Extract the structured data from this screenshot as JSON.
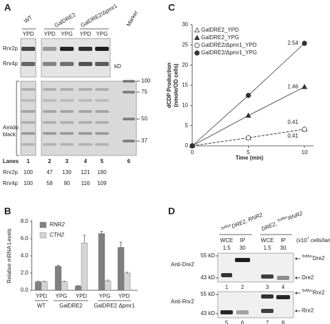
{
  "panel_a": {
    "letter": "A",
    "strains": [
      "WT",
      "GalDRE2",
      "GalDRE2/Δpmr1"
    ],
    "marker": "Marker",
    "media": [
      "YPD",
      "YPD",
      "YPG",
      "YPD",
      "YPG"
    ],
    "bands": [
      "Rnr2p",
      "Rnr4p"
    ],
    "kd": "kD",
    "stain": [
      "Amido",
      "black"
    ],
    "marker_sizes": [
      "100",
      "75",
      "50",
      "37"
    ],
    "lanes_label": "Lanes",
    "lanes": [
      "1",
      "2",
      "3",
      "4",
      "5",
      "6"
    ],
    "quant": [
      {
        "label": "Rnr2p",
        "values": [
          "100",
          "47",
          "130",
          "121",
          "180"
        ]
      },
      {
        "label": "Rnr4p",
        "values": [
          "100",
          "58",
          "90",
          "116",
          "109"
        ]
      }
    ]
  },
  "chart_data": [
    {
      "type": "bar",
      "panel": "B",
      "y_label": "Relative mRNA Levels",
      "categories": [
        "YPD",
        "YPG",
        "YPD",
        "YPG",
        "YPD"
      ],
      "group_labels": [
        "WT",
        "GalDRE2",
        "GalDRE2 Δpmr1"
      ],
      "series": [
        {
          "name": "RNR2",
          "color": "#808080",
          "values": [
            1.0,
            2.8,
            0.5,
            6.6,
            5.0
          ],
          "errors": [
            0.05,
            0.1,
            0.05,
            0.25,
            0.6
          ]
        },
        {
          "name": "CTH2",
          "color": "#d4d4d4",
          "values": [
            1.0,
            1.0,
            5.5,
            1.1,
            2.0
          ],
          "errors": [
            0.05,
            0.05,
            0.9,
            0.1,
            0.1
          ]
        }
      ],
      "ylim": [
        0,
        8
      ],
      "yticks": [
        {
          "value": 0,
          "label": "0.0"
        },
        {
          "value": 2,
          "label": "2.0"
        },
        {
          "value": 4,
          "label": "4.0"
        },
        {
          "value": 6,
          "label": "6.0"
        },
        {
          "value": 8,
          "label": "8.0"
        }
      ]
    },
    {
      "type": "line",
      "panel": "C",
      "y_label": [
        "dCDP Production",
        "(nmole/OD cells)"
      ],
      "x_label": "Time (min)",
      "x": [
        0,
        5,
        10
      ],
      "xlim": [
        0,
        10.8
      ],
      "xticks": [
        0,
        5,
        10
      ],
      "ylim": [
        0,
        30
      ],
      "yticks": [
        0,
        5,
        10,
        15,
        20,
        25,
        30
      ],
      "series": [
        {
          "name": "GalDRE2_YPD",
          "color": "#333333",
          "marker": "triangle-open",
          "dash": true,
          "values": [
            0,
            2.0,
            4.1
          ],
          "rate": "0.41"
        },
        {
          "name": "GalDRE2_YPG",
          "color": "#333333",
          "marker": "triangle",
          "dash": false,
          "values": [
            0,
            7.5,
            14.6
          ],
          "rate": "1.46"
        },
        {
          "name": "GalDRE2/Δpmr1_YPD",
          "color": "#333333",
          "marker": "circle-open",
          "dash": true,
          "values": [
            0,
            2.0,
            4.1
          ],
          "rate": "0.41"
        },
        {
          "name": "GalDRE2/Δpmr1_YPG",
          "color": "#333333",
          "marker": "circle",
          "dash": false,
          "values": [
            0,
            12.5,
            25.4
          ],
          "rate": "2.54"
        }
      ]
    }
  ],
  "panel_d": {
    "letter": "D",
    "constructs": [
      [
        {
          "sup": "3xMyc"
        },
        {
          "text": "DRE2, RNR2"
        }
      ],
      [
        {
          "text": "DRE2, "
        },
        {
          "sup": "3xMyc"
        },
        {
          "text": "RNR2"
        }
      ]
    ],
    "fractions": [
      "WCE",
      "IP",
      "WCE",
      "IP"
    ],
    "amounts": [
      "1.5",
      "30",
      "1.5",
      "30"
    ],
    "amount_unit": [
      {
        "text": "(x10"
      },
      {
        "sup": "7"
      },
      {
        "text": " cells/lane)"
      }
    ],
    "blots": [
      {
        "antibody": "Anti-Dre2",
        "markers": [
          "55 kD",
          "43 kD"
        ],
        "bands": [
          [
            {
              "sup": "3xMyc"
            },
            {
              "text": "Dre2"
            }
          ],
          [
            {
              "text": "Dre2"
            }
          ]
        ],
        "lanes": [
          "1",
          "2",
          "3",
          "4"
        ]
      },
      {
        "antibody": "Anti-Rnr2",
        "markers": [
          "55 kD",
          "43 kD"
        ],
        "bands": [
          [
            {
              "sup": "3xMyc"
            },
            {
              "text": "Rnr2"
            }
          ],
          [
            {
              "text": "Rnr2"
            }
          ]
        ],
        "lanes": [
          "5",
          "6",
          "7",
          "8"
        ]
      }
    ]
  }
}
